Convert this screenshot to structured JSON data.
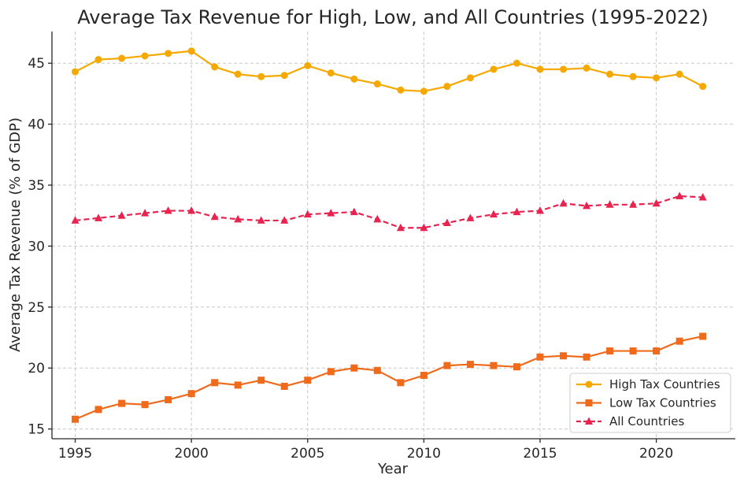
{
  "chart_data": {
    "type": "line",
    "title": "Average Tax Revenue for High, Low, and All Countries (1995-2022)",
    "xlabel": "Year",
    "ylabel": "Average Tax Revenue (% of GDP)",
    "xlim": [
      1994,
      2023.4
    ],
    "ylim": [
      14.2,
      47.6
    ],
    "xticks": [
      1995,
      2000,
      2005,
      2010,
      2015,
      2020
    ],
    "yticks": [
      15,
      20,
      25,
      30,
      35,
      40,
      45
    ],
    "grid": true,
    "legend_position": "bottom-right",
    "x": [
      1995,
      1996,
      1997,
      1998,
      1999,
      2000,
      2001,
      2002,
      2003,
      2004,
      2005,
      2006,
      2007,
      2008,
      2009,
      2010,
      2011,
      2012,
      2013,
      2014,
      2015,
      2016,
      2017,
      2018,
      2019,
      2020,
      2021,
      2022
    ],
    "series": [
      {
        "name": "High Tax Countries",
        "color": "#f5a800",
        "marker": "circle",
        "line_style": "solid",
        "values": [
          44.3,
          45.3,
          45.4,
          45.6,
          45.8,
          46.0,
          44.7,
          44.1,
          43.9,
          44.0,
          44.8,
          44.2,
          43.7,
          43.3,
          42.8,
          42.7,
          43.1,
          43.8,
          44.5,
          45.0,
          44.5,
          44.5,
          44.6,
          44.1,
          43.9,
          43.8,
          44.1,
          43.1
        ]
      },
      {
        "name": "Low Tax Countries",
        "color": "#f06a1c",
        "marker": "square",
        "line_style": "solid",
        "values": [
          15.8,
          16.6,
          17.1,
          17.0,
          17.4,
          17.9,
          18.8,
          18.6,
          19.0,
          18.5,
          19.0,
          19.7,
          20.0,
          19.8,
          18.8,
          19.4,
          20.2,
          20.3,
          20.2,
          20.1,
          20.9,
          21.0,
          20.9,
          21.4,
          21.4,
          21.4,
          22.2,
          22.6
        ]
      },
      {
        "name": "All Countries",
        "color": "#e8234f",
        "marker": "triangle",
        "line_style": "dashed",
        "values": [
          32.1,
          32.3,
          32.5,
          32.7,
          32.9,
          32.9,
          32.4,
          32.2,
          32.1,
          32.1,
          32.6,
          32.7,
          32.8,
          32.2,
          31.5,
          31.5,
          31.9,
          32.3,
          32.6,
          32.8,
          32.9,
          33.5,
          33.3,
          33.4,
          33.4,
          33.5,
          34.1,
          34.0
        ]
      }
    ]
  }
}
